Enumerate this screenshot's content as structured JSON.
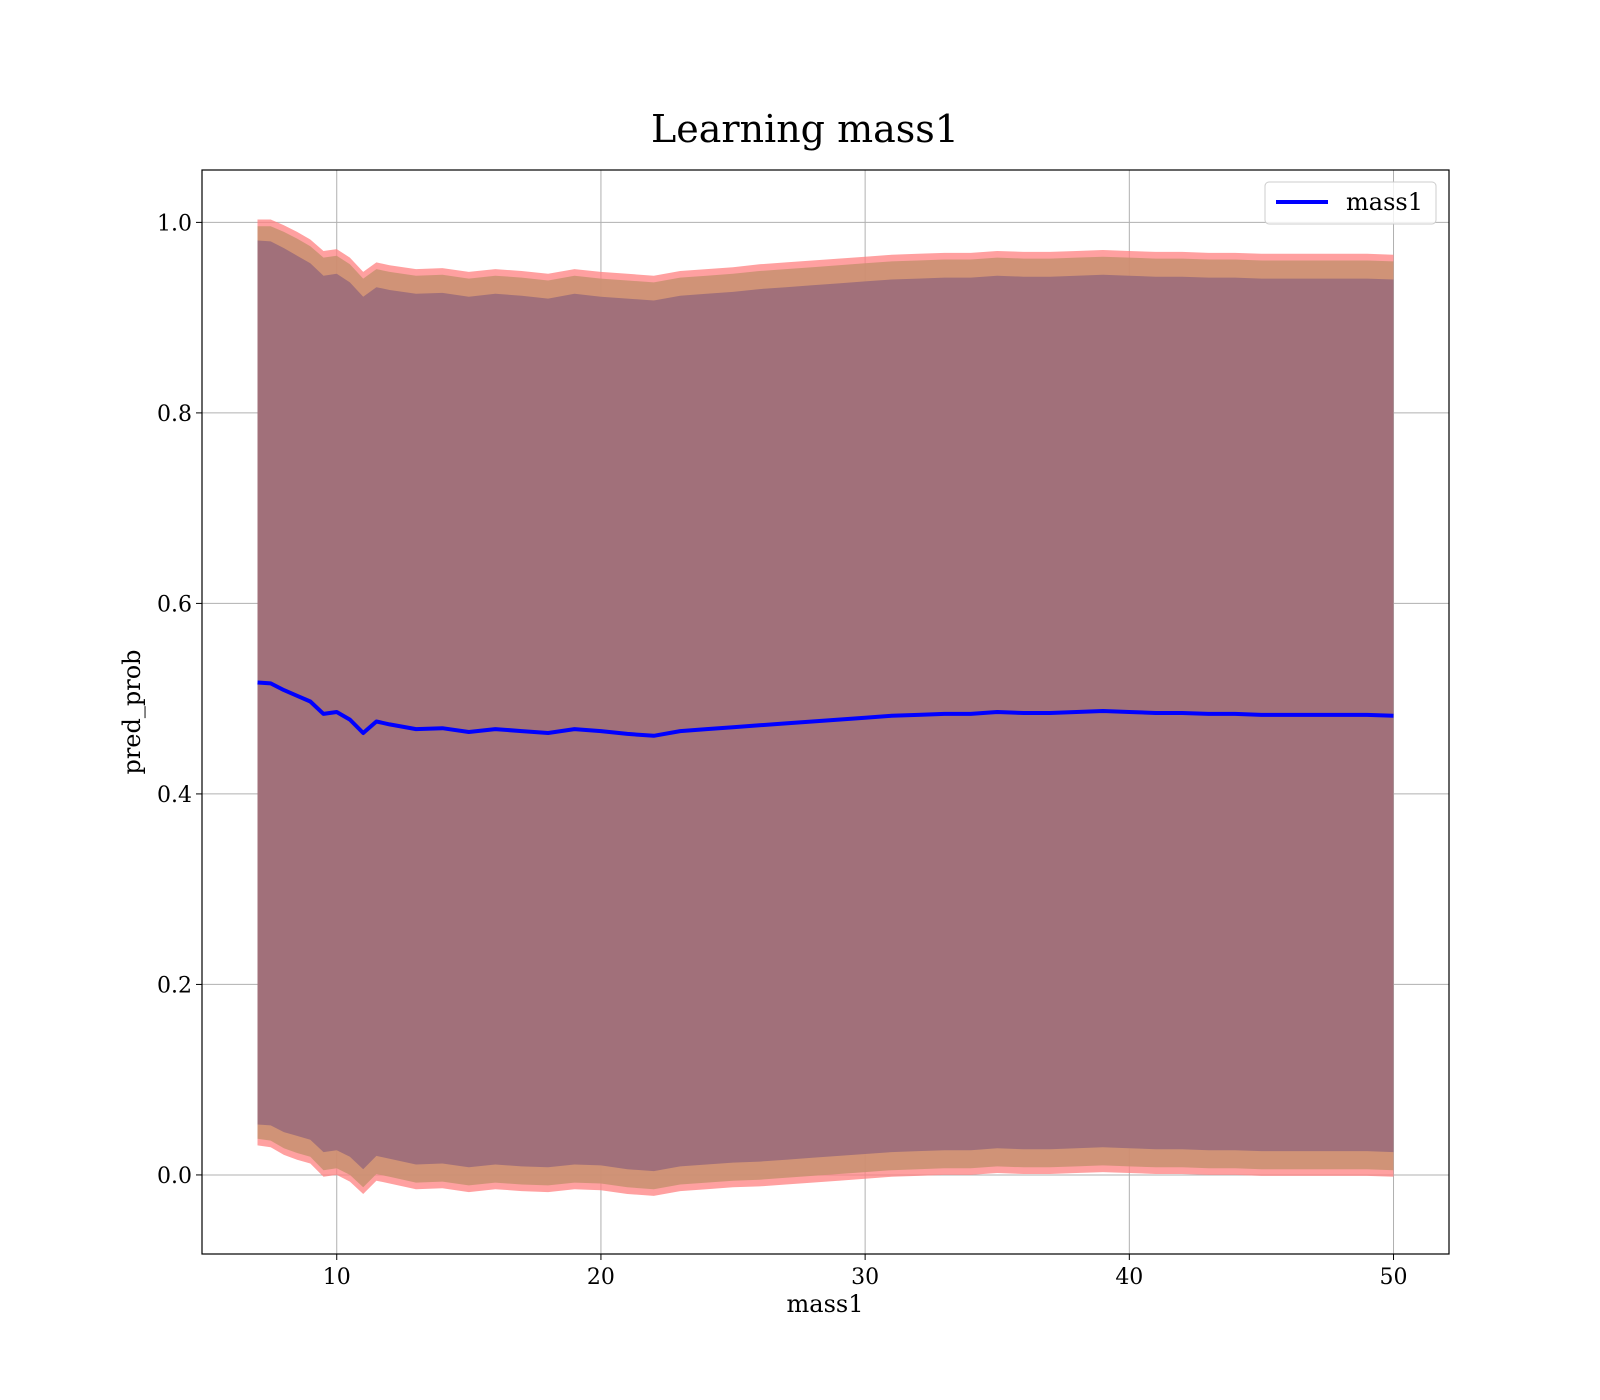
{
  "chart_data": {
    "type": "area",
    "title": "Learning mass1",
    "xlabel": "mass1",
    "ylabel": "pred_prob",
    "xlim": [
      4.9,
      52.1
    ],
    "ylim": [
      -0.083,
      1.055
    ],
    "xticks": [
      10,
      20,
      30,
      40,
      50
    ],
    "yticks": [
      0.0,
      0.2,
      0.4,
      0.6,
      0.8,
      1.0
    ],
    "xtick_labels": [
      "10",
      "20",
      "30",
      "40",
      "50"
    ],
    "ytick_labels": [
      "0.0",
      "0.2",
      "0.4",
      "0.6",
      "0.8",
      "1.0"
    ],
    "grid": true,
    "legend": {
      "position": "top-right",
      "entries": [
        "mass1"
      ]
    },
    "colors": {
      "line": "#0000ff",
      "outer_band": "#ff8080",
      "middle_band": "#c89070",
      "inner_band": "#a1707a"
    },
    "x": [
      7,
      7.5,
      8,
      8.5,
      9,
      9.5,
      10,
      10.5,
      11,
      11.5,
      12,
      13,
      14,
      15,
      16,
      17,
      18,
      19,
      20,
      21,
      22,
      23,
      24,
      25,
      26,
      27,
      28,
      29,
      30,
      31,
      32,
      33,
      34,
      35,
      36,
      37,
      38,
      39,
      40,
      41,
      42,
      43,
      44,
      45,
      46,
      47,
      48,
      49,
      50
    ],
    "series": [
      {
        "name": "mass1",
        "values": [
          0.517,
          0.516,
          0.509,
          0.503,
          0.497,
          0.484,
          0.486,
          0.478,
          0.464,
          0.476,
          0.473,
          0.468,
          0.469,
          0.465,
          0.468,
          0.466,
          0.464,
          0.468,
          0.466,
          0.463,
          0.461,
          0.466,
          0.468,
          0.47,
          0.472,
          0.474,
          0.476,
          0.478,
          0.48,
          0.482,
          0.483,
          0.484,
          0.484,
          0.486,
          0.485,
          0.485,
          0.486,
          0.487,
          0.486,
          0.485,
          0.485,
          0.484,
          0.484,
          0.483,
          0.483,
          0.483,
          0.483,
          0.483,
          0.482
        ]
      }
    ],
    "bands": [
      {
        "upper": [
          1.003,
          1.003,
          0.997,
          0.99,
          0.982,
          0.97,
          0.972,
          0.963,
          0.948,
          0.958,
          0.955,
          0.951,
          0.952,
          0.948,
          0.951,
          0.949,
          0.946,
          0.951,
          0.948,
          0.946,
          0.944,
          0.949,
          0.951,
          0.953,
          0.956,
          0.958,
          0.96,
          0.962,
          0.964,
          0.966,
          0.967,
          0.968,
          0.968,
          0.97,
          0.969,
          0.969,
          0.97,
          0.971,
          0.97,
          0.969,
          0.969,
          0.968,
          0.968,
          0.967,
          0.967,
          0.967,
          0.967,
          0.967,
          0.966
        ],
        "lower": [
          0.031,
          0.029,
          0.021,
          0.016,
          0.012,
          -0.002,
          0.0,
          -0.007,
          -0.02,
          -0.006,
          -0.009,
          -0.015,
          -0.014,
          -0.018,
          -0.015,
          -0.017,
          -0.018,
          -0.015,
          -0.016,
          -0.02,
          -0.022,
          -0.017,
          -0.015,
          -0.013,
          -0.012,
          -0.01,
          -0.008,
          -0.006,
          -0.004,
          -0.002,
          -0.001,
          0.0,
          0.0,
          0.002,
          0.001,
          0.001,
          0.002,
          0.003,
          0.002,
          0.001,
          0.001,
          0.0,
          0.0,
          -0.001,
          -0.001,
          -0.001,
          -0.001,
          -0.001,
          -0.002
        ]
      },
      {
        "upper": [
          0.996,
          0.996,
          0.99,
          0.983,
          0.975,
          0.963,
          0.965,
          0.956,
          0.941,
          0.951,
          0.948,
          0.944,
          0.945,
          0.941,
          0.944,
          0.942,
          0.939,
          0.944,
          0.941,
          0.939,
          0.937,
          0.942,
          0.944,
          0.946,
          0.949,
          0.951,
          0.953,
          0.955,
          0.957,
          0.959,
          0.96,
          0.961,
          0.961,
          0.963,
          0.962,
          0.962,
          0.963,
          0.964,
          0.963,
          0.962,
          0.962,
          0.961,
          0.961,
          0.96,
          0.96,
          0.96,
          0.96,
          0.96,
          0.959
        ],
        "lower": [
          0.038,
          0.036,
          0.028,
          0.023,
          0.019,
          0.005,
          0.007,
          0.0,
          -0.013,
          0.001,
          -0.002,
          -0.008,
          -0.007,
          -0.011,
          -0.008,
          -0.01,
          -0.011,
          -0.008,
          -0.009,
          -0.013,
          -0.015,
          -0.01,
          -0.008,
          -0.006,
          -0.005,
          -0.003,
          -0.001,
          0.001,
          0.003,
          0.005,
          0.006,
          0.007,
          0.007,
          0.009,
          0.008,
          0.008,
          0.009,
          0.01,
          0.009,
          0.008,
          0.008,
          0.007,
          0.007,
          0.006,
          0.006,
          0.006,
          0.006,
          0.006,
          0.005
        ]
      },
      {
        "upper": [
          0.981,
          0.98,
          0.973,
          0.965,
          0.957,
          0.944,
          0.946,
          0.937,
          0.922,
          0.932,
          0.929,
          0.925,
          0.926,
          0.922,
          0.925,
          0.923,
          0.92,
          0.925,
          0.922,
          0.92,
          0.918,
          0.923,
          0.925,
          0.927,
          0.93,
          0.932,
          0.934,
          0.936,
          0.938,
          0.94,
          0.941,
          0.942,
          0.942,
          0.944,
          0.943,
          0.943,
          0.944,
          0.945,
          0.944,
          0.943,
          0.943,
          0.942,
          0.942,
          0.941,
          0.941,
          0.941,
          0.941,
          0.941,
          0.94
        ],
        "lower": [
          0.053,
          0.052,
          0.045,
          0.041,
          0.037,
          0.024,
          0.026,
          0.019,
          0.006,
          0.02,
          0.017,
          0.011,
          0.012,
          0.008,
          0.011,
          0.009,
          0.008,
          0.011,
          0.01,
          0.006,
          0.004,
          0.009,
          0.011,
          0.013,
          0.014,
          0.016,
          0.018,
          0.02,
          0.022,
          0.024,
          0.025,
          0.026,
          0.026,
          0.028,
          0.027,
          0.027,
          0.028,
          0.029,
          0.028,
          0.027,
          0.027,
          0.026,
          0.026,
          0.025,
          0.025,
          0.025,
          0.025,
          0.025,
          0.024
        ]
      }
    ]
  }
}
